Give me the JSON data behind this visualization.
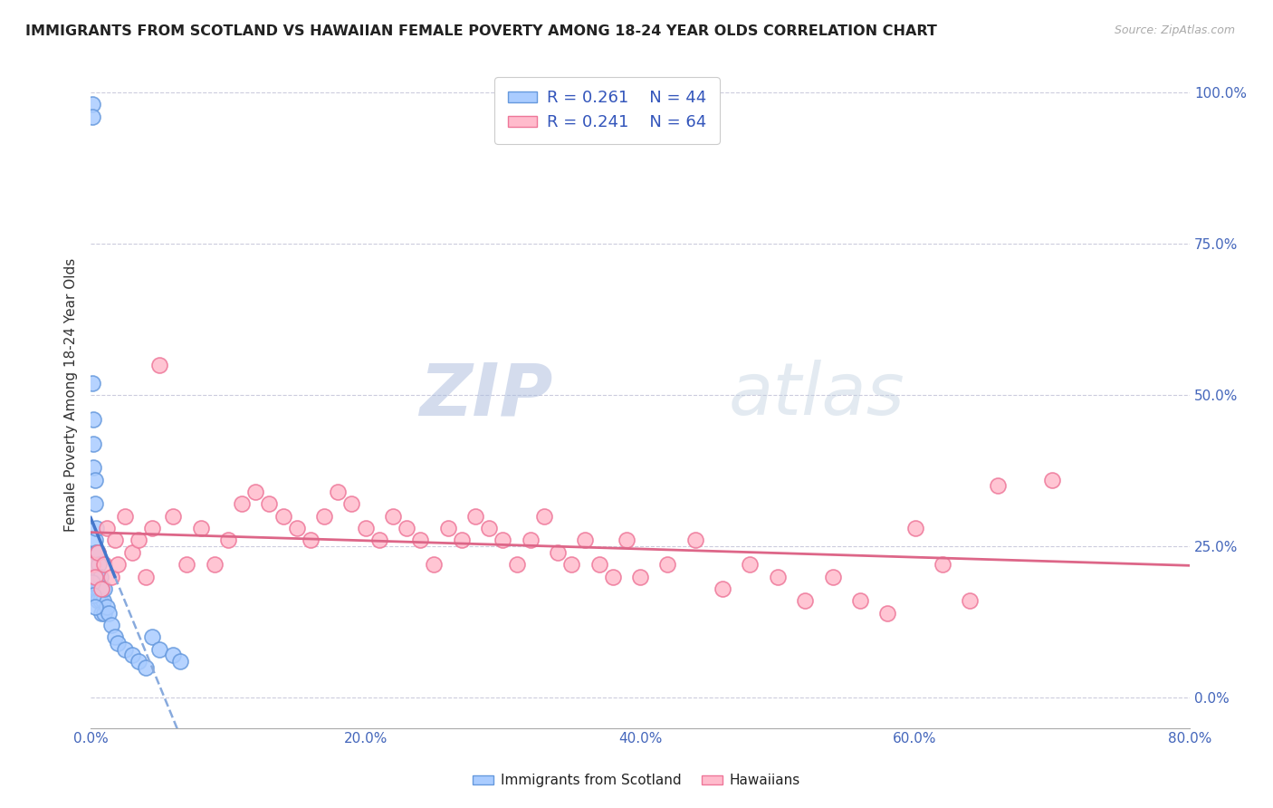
{
  "title": "IMMIGRANTS FROM SCOTLAND VS HAWAIIAN FEMALE POVERTY AMONG 18-24 YEAR OLDS CORRELATION CHART",
  "source": "Source: ZipAtlas.com",
  "ylabel": "Female Poverty Among 18-24 Year Olds",
  "xlim": [
    0.0,
    0.8
  ],
  "ylim": [
    -0.05,
    1.05
  ],
  "xtick_labels": [
    "0.0%",
    "",
    "20.0%",
    "",
    "40.0%",
    "",
    "60.0%",
    "",
    "80.0%"
  ],
  "xtick_values": [
    0.0,
    0.1,
    0.2,
    0.3,
    0.4,
    0.5,
    0.6,
    0.7,
    0.8
  ],
  "ytick_labels_right": [
    "0.0%",
    "25.0%",
    "50.0%",
    "75.0%",
    "100.0%"
  ],
  "ytick_values": [
    0.0,
    0.25,
    0.5,
    0.75,
    1.0
  ],
  "scotland_color": "#aaccff",
  "scotland_edge_color": "#6699dd",
  "hawaii_color": "#ffbbcc",
  "hawaii_edge_color": "#ee7799",
  "trend_scotland_color": "#4477cc",
  "trend_hawaii_color": "#dd6688",
  "legend_r_scotland": "R = 0.261",
  "legend_n_scotland": "N = 44",
  "legend_r_hawaii": "R = 0.241",
  "legend_n_hawaii": "N = 64",
  "watermark_zip": "ZIP",
  "watermark_atlas": "atlas",
  "background_color": "#ffffff",
  "grid_color": "#ccccdd",
  "scotland_x": [
    0.001,
    0.001,
    0.001,
    0.001,
    0.001,
    0.002,
    0.002,
    0.002,
    0.002,
    0.003,
    0.003,
    0.003,
    0.003,
    0.004,
    0.004,
    0.004,
    0.005,
    0.005,
    0.005,
    0.006,
    0.006,
    0.007,
    0.007,
    0.008,
    0.008,
    0.009,
    0.01,
    0.01,
    0.012,
    0.013,
    0.015,
    0.018,
    0.02,
    0.025,
    0.03,
    0.035,
    0.04,
    0.045,
    0.05,
    0.06,
    0.065,
    0.001,
    0.002,
    0.003
  ],
  "scotland_y": [
    0.98,
    0.96,
    0.52,
    0.2,
    0.18,
    0.46,
    0.42,
    0.38,
    0.22,
    0.36,
    0.32,
    0.26,
    0.2,
    0.28,
    0.24,
    0.18,
    0.24,
    0.2,
    0.16,
    0.22,
    0.18,
    0.2,
    0.16,
    0.18,
    0.14,
    0.16,
    0.18,
    0.14,
    0.15,
    0.14,
    0.12,
    0.1,
    0.09,
    0.08,
    0.07,
    0.06,
    0.05,
    0.1,
    0.08,
    0.07,
    0.06,
    0.19,
    0.17,
    0.15
  ],
  "hawaii_x": [
    0.001,
    0.003,
    0.005,
    0.008,
    0.01,
    0.012,
    0.015,
    0.018,
    0.02,
    0.025,
    0.03,
    0.035,
    0.04,
    0.045,
    0.05,
    0.06,
    0.07,
    0.08,
    0.09,
    0.1,
    0.11,
    0.12,
    0.13,
    0.14,
    0.15,
    0.16,
    0.17,
    0.18,
    0.19,
    0.2,
    0.21,
    0.22,
    0.23,
    0.24,
    0.25,
    0.26,
    0.27,
    0.28,
    0.29,
    0.3,
    0.31,
    0.32,
    0.33,
    0.34,
    0.35,
    0.36,
    0.37,
    0.38,
    0.39,
    0.4,
    0.42,
    0.44,
    0.46,
    0.48,
    0.5,
    0.52,
    0.54,
    0.56,
    0.58,
    0.6,
    0.62,
    0.64,
    0.66,
    0.7
  ],
  "hawaii_y": [
    0.22,
    0.2,
    0.24,
    0.18,
    0.22,
    0.28,
    0.2,
    0.26,
    0.22,
    0.3,
    0.24,
    0.26,
    0.2,
    0.28,
    0.55,
    0.3,
    0.22,
    0.28,
    0.22,
    0.26,
    0.32,
    0.34,
    0.32,
    0.3,
    0.28,
    0.26,
    0.3,
    0.34,
    0.32,
    0.28,
    0.26,
    0.3,
    0.28,
    0.26,
    0.22,
    0.28,
    0.26,
    0.3,
    0.28,
    0.26,
    0.22,
    0.26,
    0.3,
    0.24,
    0.22,
    0.26,
    0.22,
    0.2,
    0.26,
    0.2,
    0.22,
    0.26,
    0.18,
    0.22,
    0.2,
    0.16,
    0.2,
    0.16,
    0.14,
    0.28,
    0.22,
    0.16,
    0.35,
    0.36
  ]
}
